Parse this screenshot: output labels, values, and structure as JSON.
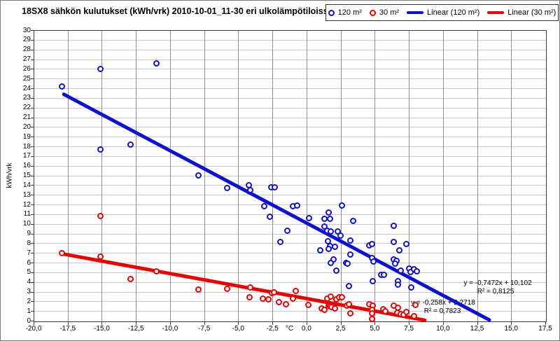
{
  "chart_data": {
    "type": "scatter",
    "title": "18SX8 sähkön kulutukset (kWh/vrk) 2010-10-01_11-30 eri ulkolämpötiloissa",
    "xlabel": "°C",
    "ylabel": "kWh/vrk",
    "xlim": [
      -20,
      17.5
    ],
    "ylim": [
      0,
      30
    ],
    "x_tick_step": 2.5,
    "y_tick_step": 1,
    "x_tick_labels": [
      "-20,0",
      "-17,5",
      "-15,0",
      "-12,5",
      "-10,0",
      "-7,5",
      "-5,0",
      "-2,5",
      "0,0",
      "2,5",
      "5,0",
      "7,5",
      "10,0",
      "12,5",
      "15,0",
      "17,5"
    ],
    "grid": true,
    "legend_position": "top-right",
    "colors": {
      "series_120": "#1010d0",
      "series_30": "#ee0000",
      "grid_h": "#c9c9c9",
      "grid_v": "#8f8f8f",
      "axis": "#3a3a3a"
    },
    "series": [
      {
        "name": "120 m²",
        "type": "scatter",
        "color_key": "series_120",
        "points": [
          [
            -17.9,
            24.2
          ],
          [
            -15.1,
            26.0
          ],
          [
            -11.0,
            26.6
          ],
          [
            -15.1,
            17.7
          ],
          [
            -12.9,
            18.2
          ],
          [
            -7.9,
            15.0
          ],
          [
            -5.8,
            13.7
          ],
          [
            -4.2,
            14.0
          ],
          [
            -4.1,
            13.5
          ],
          [
            -2.6,
            13.8
          ],
          [
            -2.35,
            13.8
          ],
          [
            -3.1,
            11.8
          ],
          [
            -2.7,
            10.7
          ],
          [
            -1.0,
            11.8
          ],
          [
            -0.7,
            11.9
          ],
          [
            -1.4,
            9.3
          ],
          [
            -1.9,
            8.1
          ],
          [
            0.2,
            10.6
          ],
          [
            1.3,
            10.5
          ],
          [
            1.7,
            10.5
          ],
          [
            1.6,
            11.2
          ],
          [
            2.6,
            11.9
          ],
          [
            3.4,
            10.3
          ],
          [
            1.3,
            9.7
          ],
          [
            1.5,
            9.3
          ],
          [
            1.8,
            9.2
          ],
          [
            2.3,
            9.2
          ],
          [
            2.5,
            8.8
          ],
          [
            1.55,
            8.2
          ],
          [
            1.7,
            7.7
          ],
          [
            1.6,
            7.4
          ],
          [
            2.1,
            7.6
          ],
          [
            1.0,
            7.3
          ],
          [
            3.2,
            8.3
          ],
          [
            3.2,
            6.8
          ],
          [
            4.6,
            7.8
          ],
          [
            4.8,
            7.9
          ],
          [
            6.4,
            9.8
          ],
          [
            6.4,
            8.1
          ],
          [
            7.3,
            7.9
          ],
          [
            6.8,
            7.3
          ],
          [
            2.0,
            6.3
          ],
          [
            1.8,
            6.0
          ],
          [
            2.9,
            6.0
          ],
          [
            3.0,
            5.9
          ],
          [
            2.2,
            5.2
          ],
          [
            4.8,
            6.5
          ],
          [
            4.9,
            6.1
          ],
          [
            6.4,
            6.3
          ],
          [
            6.6,
            6.2
          ],
          [
            6.5,
            5.9
          ],
          [
            6.9,
            5.2
          ],
          [
            7.5,
            5.4
          ],
          [
            7.6,
            5.05
          ],
          [
            7.9,
            5.3
          ],
          [
            8.1,
            5.1
          ],
          [
            5.45,
            4.7
          ],
          [
            5.7,
            4.7
          ],
          [
            4.85,
            4.1
          ],
          [
            6.7,
            4.1
          ],
          [
            6.7,
            3.7
          ],
          [
            7.7,
            3.4
          ],
          [
            3.1,
            3.6
          ]
        ]
      },
      {
        "name": "30 m²",
        "type": "scatter",
        "color_key": "series_30",
        "points": [
          [
            -17.9,
            7.0
          ],
          [
            -15.1,
            10.8
          ],
          [
            -15.1,
            6.6
          ],
          [
            -12.9,
            4.3
          ],
          [
            -11.0,
            5.1
          ],
          [
            -7.9,
            3.2
          ],
          [
            -5.8,
            3.3
          ],
          [
            -4.1,
            3.4
          ],
          [
            -4.15,
            2.4
          ],
          [
            -3.2,
            2.3
          ],
          [
            -2.8,
            2.2
          ],
          [
            -2.55,
            2.85
          ],
          [
            -2.4,
            2.9
          ],
          [
            -2.0,
            1.9
          ],
          [
            -1.5,
            1.7
          ],
          [
            -0.8,
            3.1
          ],
          [
            -1.0,
            2.3
          ],
          [
            0.15,
            1.6
          ],
          [
            1.1,
            1.3
          ],
          [
            1.3,
            1.1
          ],
          [
            1.5,
            2.3
          ],
          [
            1.8,
            2.5
          ],
          [
            2.2,
            2.2
          ],
          [
            2.4,
            2.4
          ],
          [
            2.6,
            2.4
          ],
          [
            1.6,
            1.55
          ],
          [
            1.75,
            1.5
          ],
          [
            1.85,
            1.4
          ],
          [
            2.1,
            1.3
          ],
          [
            2.95,
            1.55
          ],
          [
            3.1,
            1.7
          ],
          [
            3.2,
            0.75
          ],
          [
            4.6,
            1.7
          ],
          [
            4.85,
            1.55
          ],
          [
            4.8,
            1.1
          ],
          [
            4.8,
            0.75
          ],
          [
            4.8,
            0.2
          ],
          [
            5.6,
            1.2
          ],
          [
            5.8,
            1.0
          ],
          [
            6.4,
            1.55
          ],
          [
            6.7,
            1.35
          ],
          [
            6.65,
            0.85
          ],
          [
            6.9,
            0.7
          ],
          [
            7.1,
            0.65
          ],
          [
            7.3,
            0.9
          ],
          [
            8.0,
            1.6
          ],
          [
            7.9,
            0.5
          ]
        ]
      },
      {
        "name": "Linear (120 m²)",
        "type": "trendline",
        "color_key": "series_120",
        "slope": -0.7472,
        "intercept": 10.102,
        "x_range": [
          -17.9,
          13.52
        ],
        "equation_label": "y = -0,7472x + 10,102",
        "r2_label": "R² = 0,8125"
      },
      {
        "name": "Linear (30 m²)",
        "type": "trendline",
        "color_key": "series_30",
        "slope": -0.258,
        "intercept": 2.2718,
        "x_range": [
          -17.9,
          8.8
        ],
        "equation_label": "y = -0,258x + 2,2718",
        "r2_label": "R² = 0,7823"
      }
    ]
  }
}
